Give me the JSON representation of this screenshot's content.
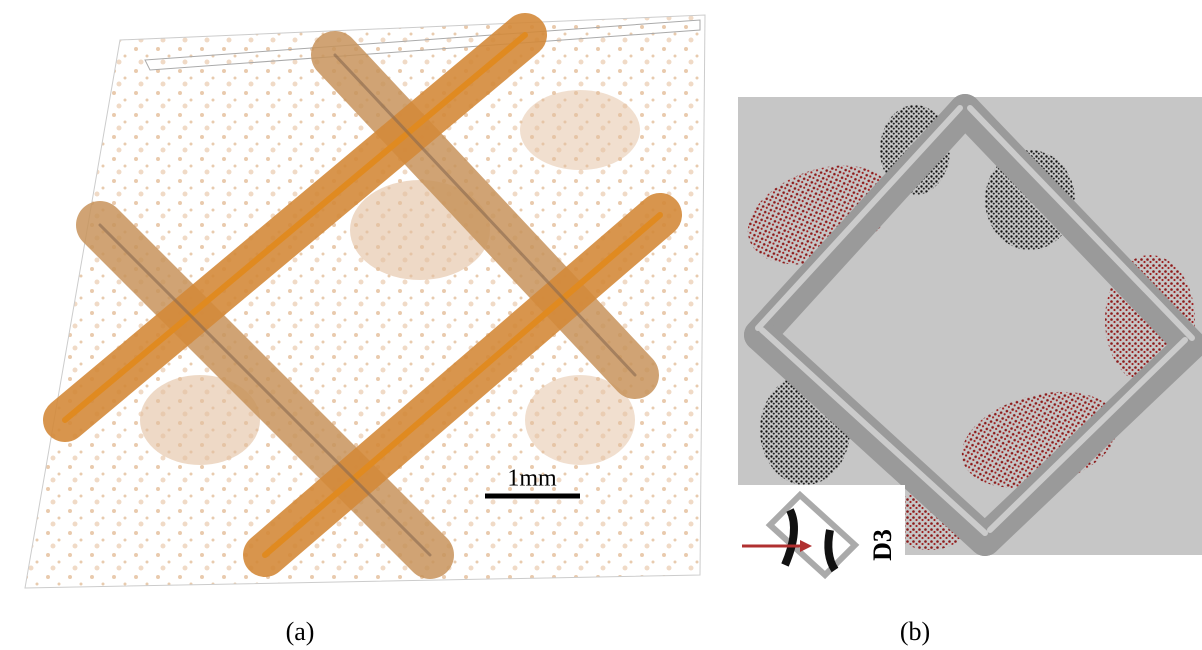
{
  "panels": [
    {
      "label": "(a)",
      "scale_bar": "1mm"
    },
    {
      "label": "(b)",
      "inset_label": "D3"
    }
  ]
}
